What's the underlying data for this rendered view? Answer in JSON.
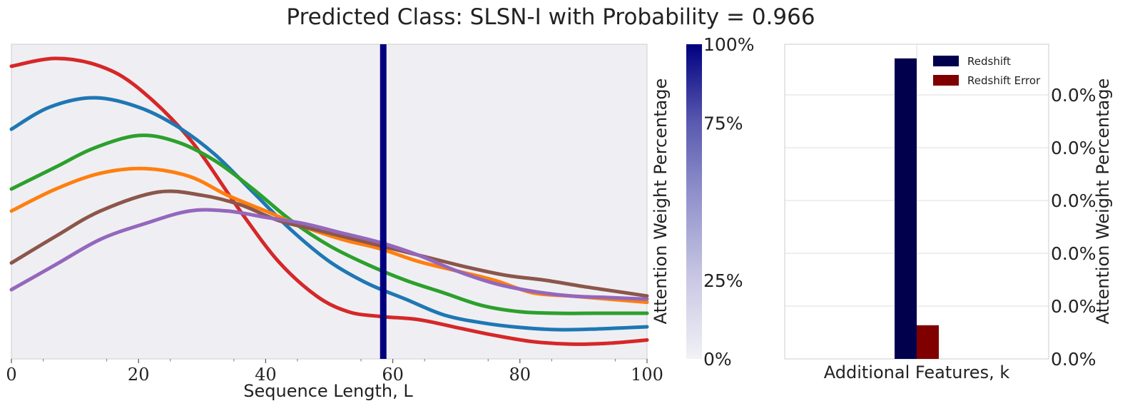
{
  "figure": {
    "title": "Predicted Class: SLSN-I with Probability = 0.966"
  },
  "colors": {
    "panel_bg": "#efeff3",
    "redshift": "#00004c",
    "redshift_error": "#800000",
    "attention_line": "#00007f"
  },
  "chart_data": [
    {
      "type": "line",
      "xlabel": "Sequence Length, L",
      "xlim": [
        0,
        100
      ],
      "ylim": [
        0,
        1
      ],
      "x_ticks": [
        "0",
        "20",
        "40",
        "60",
        "80",
        "100"
      ],
      "y_ticks_visible": false,
      "grid": false,
      "attention_marker_x": 58.5,
      "series": [
        {
          "color": "#d62728",
          "x": [
            0,
            7,
            14,
            20,
            28,
            36,
            42,
            48,
            53,
            58,
            64,
            70,
            76,
            82,
            88,
            94,
            100
          ],
          "y": [
            0.93,
            0.955,
            0.93,
            0.86,
            0.7,
            0.47,
            0.31,
            0.2,
            0.15,
            0.135,
            0.125,
            0.1,
            0.075,
            0.055,
            0.047,
            0.05,
            0.06
          ]
        },
        {
          "color": "#1f77b4",
          "x": [
            0,
            6,
            13,
            20,
            26,
            32,
            38,
            44,
            50,
            56,
            62,
            68,
            74,
            80,
            86,
            92,
            100
          ],
          "y": [
            0.73,
            0.8,
            0.83,
            0.8,
            0.74,
            0.65,
            0.53,
            0.41,
            0.31,
            0.24,
            0.19,
            0.14,
            0.115,
            0.1,
            0.093,
            0.095,
            0.102
          ]
        },
        {
          "color": "#2ca02c",
          "x": [
            0,
            7,
            13,
            20,
            26,
            32,
            38,
            44,
            50,
            56,
            62,
            68,
            74,
            80,
            86,
            92,
            100
          ],
          "y": [
            0.54,
            0.61,
            0.67,
            0.71,
            0.69,
            0.63,
            0.54,
            0.44,
            0.36,
            0.3,
            0.25,
            0.21,
            0.17,
            0.15,
            0.145,
            0.145,
            0.145
          ]
        },
        {
          "color": "#ff7f0e",
          "x": [
            0,
            7,
            14,
            21,
            28,
            34,
            40,
            46,
            52,
            58,
            64,
            70,
            76,
            82,
            88,
            94,
            100
          ],
          "y": [
            0.47,
            0.54,
            0.59,
            0.605,
            0.58,
            0.52,
            0.47,
            0.42,
            0.38,
            0.35,
            0.31,
            0.28,
            0.25,
            0.21,
            0.2,
            0.19,
            0.18
          ]
        },
        {
          "color": "#8c564b",
          "x": [
            0,
            7,
            14,
            23,
            30,
            36,
            42,
            48,
            54,
            60,
            66,
            72,
            78,
            84,
            90,
            95,
            100
          ],
          "y": [
            0.305,
            0.39,
            0.47,
            0.53,
            0.52,
            0.49,
            0.44,
            0.41,
            0.38,
            0.35,
            0.32,
            0.29,
            0.265,
            0.25,
            0.23,
            0.215,
            0.2
          ]
        },
        {
          "color": "#9467bd",
          "x": [
            0,
            7,
            14,
            21,
            28,
            34,
            40,
            46,
            52,
            58,
            64,
            70,
            76,
            82,
            88,
            94,
            100
          ],
          "y": [
            0.22,
            0.3,
            0.38,
            0.43,
            0.47,
            0.47,
            0.45,
            0.43,
            0.4,
            0.37,
            0.33,
            0.28,
            0.24,
            0.215,
            0.2,
            0.195,
            0.19
          ]
        }
      ]
    },
    {
      "type": "colorbar",
      "label": "Attention Weight Percentage",
      "ticks": [
        "0%",
        "25%",
        "75%",
        "100%"
      ],
      "tick_values": [
        0,
        25,
        75,
        100
      ],
      "range": [
        0,
        100
      ]
    },
    {
      "type": "bar",
      "xlabel": "Additional Features, k",
      "ylabel": "Attention Weight Percentage",
      "y_ticks": [
        "0.0%",
        "0.0%",
        "0.0%",
        "0.0%",
        "0.0%",
        "0.0%"
      ],
      "ylim": [
        0,
        1
      ],
      "grid": true,
      "legend_position": "top-right",
      "series": [
        {
          "name": "Redshift",
          "values": [
            0.955
          ]
        },
        {
          "name": "Redshift Error",
          "values": [
            0.107
          ]
        }
      ]
    }
  ]
}
